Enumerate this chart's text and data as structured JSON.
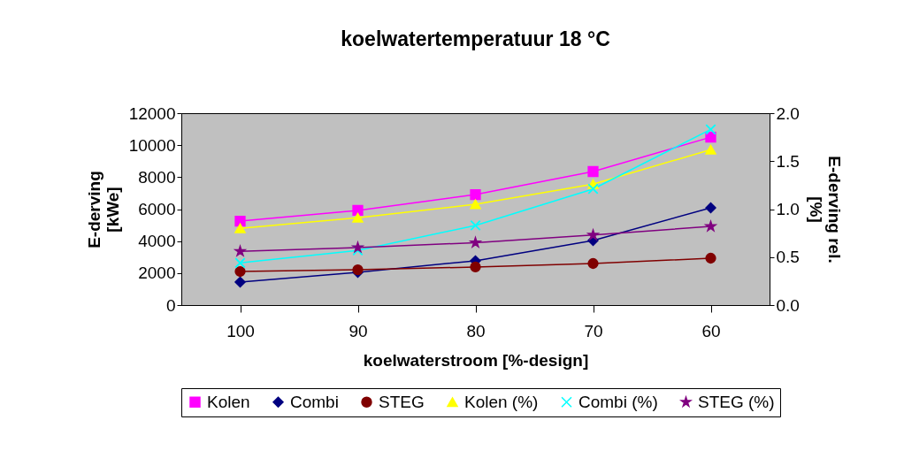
{
  "chart_data": {
    "type": "line",
    "title": "koelwatertemperatuur 18 °C",
    "xlabel": "koelwaterstroom [%-design]",
    "ylabel": "E-derving [kWe]",
    "y2label": "E-derving  rel. [%]",
    "categories": [
      "100",
      "90",
      "80",
      "70",
      "60"
    ],
    "series": [
      {
        "name": "Kolen",
        "color": "#ff00ff",
        "marker": "square",
        "values": [
          5250,
          5920,
          6910,
          8350,
          10500
        ]
      },
      {
        "name": "Combi",
        "color": "#000080",
        "marker": "diamond",
        "values": [
          1440,
          2050,
          2770,
          4040,
          6080
        ]
      },
      {
        "name": "STEG",
        "color": "#800000",
        "marker": "circle",
        "values": [
          2100,
          2210,
          2380,
          2600,
          2930
        ]
      },
      {
        "name": "Kolen (%)",
        "color": "#ffff00",
        "marker": "triangle",
        "axis": "y2",
        "values": [
          0.8,
          0.91,
          1.05,
          1.26,
          1.62
        ]
      },
      {
        "name": "Combi (%)",
        "color": "#00ffff",
        "marker": "cross",
        "axis": "y2",
        "values": [
          0.44,
          0.57,
          0.83,
          1.21,
          1.83
        ]
      },
      {
        "name": "STEG (%)",
        "color": "#800080",
        "marker": "star",
        "axis": "y2",
        "values": [
          0.56,
          0.6,
          0.65,
          0.73,
          0.82
        ]
      }
    ],
    "ylim": [
      0,
      12000
    ],
    "yticks": [
      0,
      2000,
      4000,
      6000,
      8000,
      10000,
      12000
    ],
    "y2lim": [
      0,
      2.0
    ],
    "y2ticks": [
      {
        "value": 0,
        "label": "0.0"
      },
      {
        "value": 0.5,
        "label": "0.5"
      },
      {
        "value": 1.0,
        "label": "1.0"
      },
      {
        "value": 1.5,
        "label": "1.5"
      },
      {
        "value": 2.0,
        "label": "2.0"
      }
    ],
    "grid": false,
    "legend": "bottom",
    "line_style": "solid"
  }
}
